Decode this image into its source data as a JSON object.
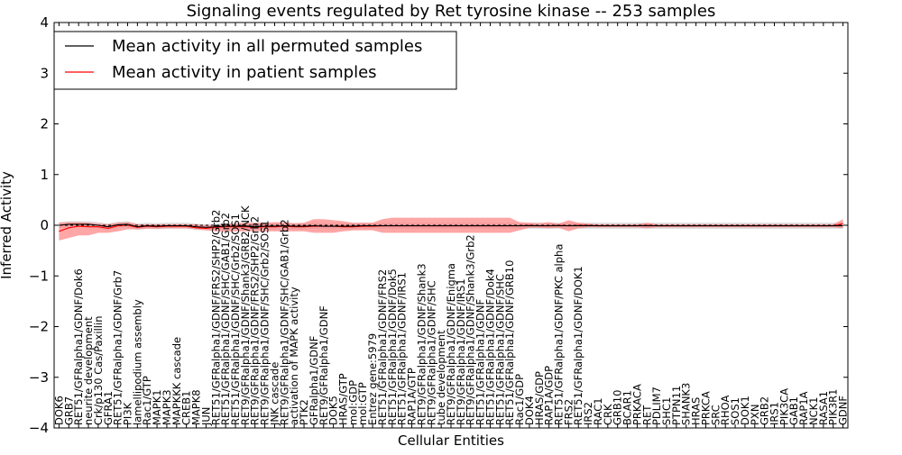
{
  "chart_data": {
    "type": "line",
    "title": "Signaling events regulated by Ret tyrosine kinase -- 253 samples",
    "xlabel": "Cellular Entities",
    "ylabel": "Inferred Activity",
    "ylim": [
      -4,
      4
    ],
    "yticks": [
      4,
      3,
      2,
      1,
      0,
      -1,
      -2,
      -3,
      -4
    ],
    "legend_position": "top-left",
    "colors": {
      "permuted": "#000000",
      "patient": "#ff0000",
      "patient_band": "#ff8080",
      "permuted_band": "#bfbfbf"
    },
    "categories": [
      "DOK6",
      "GRB7",
      "RET51/GFRalpha1/GDNF/Dok6",
      "neurite development",
      "Crk/p130 Cas/Paxillin",
      "GFRA1",
      "RET51/GFRalpha1/GDNF/Grb7",
      "PI3K",
      "lamellipodium assembly",
      "Rac1/GTP",
      "MAPK1",
      "MAPK3",
      "MAPKKK cascade",
      "CREB1",
      "MAPK8",
      "JUN",
      "RET51/GFRalpha1/GDNF/FRS2/SHP2/Grb2",
      "RET51/GFRalpha1/GDNF/SHC/GAB1/Grb2",
      "RET51/GFRalpha1/GDNF/SHC/Grb2/SOS1",
      "RET9/GFRalpha1/GDNF/Shank3/GRB2/NCK",
      "RET9/GFRalpha1/GDNF/FRS2/SHP2/Grb2",
      "RET9/GFRalpha1/GDNF/SHC/Grb2/SOS1",
      "JNK cascade",
      "RET9/GFRalpha1/GDNF/SHC/GAB1/Grb2",
      "activation of MAPK activity",
      "PTK2",
      "GFRalpha1/GDNF",
      "RET9/GFRalpha1/GDNF",
      "DOK5",
      "HRAS/GTP",
      "mol:GDP",
      "mol:GTP",
      "Entrez gene:5979",
      "RET51/GFRalpha1/GDNF/FRS2",
      "RET51/GFRalpha1/GDNF/Dok5",
      "RET51/GFRalpha1/GDNF/IRS1",
      "RAP1A/GTP",
      "RET9/GFRalpha1/GDNF/Shank3",
      "RET9/GFRalpha1/GDNF/SHC",
      "tube development",
      "RET9/GFRalpha1/GDNF/Enigma",
      "RET9/GFRalpha1/GDNF/IRS1",
      "RET9/GFRalpha1/GDNF/Shank3/Grb2",
      "RET51/GFRalpha1/GDNF",
      "RET51/GFRalpha1/GDNF/Dok4",
      "RET51/GFRalpha1/GDNF/SHC",
      "RET51/GFRalpha1/GDNF/GRB10",
      "Rac1/GDP",
      "DOK4",
      "HRAS/GDP",
      "RAP1A/GDP",
      "RET51/GFRalpha1/GDNF/PKC alpha",
      "FRS2",
      "RET51/GFRalpha1/GDNF/DOK1",
      "IRS2",
      "RAC1",
      "CRK",
      "GRB10",
      "BCAR1",
      "PRKACA",
      "RET",
      "PDLIM7",
      "SHC1",
      "PTPN11",
      "SHANK3",
      "HRAS",
      "PRKCA",
      "SRC",
      "RHOA",
      "SOS1",
      "DOK1",
      "PXN",
      "GRB2",
      "IRS1",
      "PIK3CA",
      "GAB1",
      "RAP1A",
      "NCK1",
      "RASA1",
      "PIK3R1",
      "GDNF"
    ],
    "series": [
      {
        "name": "Mean activity in all permuted samples",
        "role": "permuted",
        "values": [
          0.0,
          0.02,
          0.02,
          0.02,
          0.0,
          -0.03,
          0.01,
          0.02,
          -0.03,
          -0.01,
          -0.02,
          -0.01,
          -0.01,
          -0.01,
          -0.03,
          -0.04,
          -0.03,
          -0.02,
          -0.02,
          -0.02,
          -0.03,
          -0.02,
          -0.02,
          -0.01,
          -0.02,
          -0.02,
          -0.01,
          -0.02,
          -0.02,
          -0.02,
          -0.02,
          -0.01,
          -0.01,
          -0.01,
          -0.01,
          -0.01,
          -0.01,
          -0.01,
          -0.01,
          -0.01,
          -0.01,
          -0.01,
          -0.01,
          -0.01,
          -0.01,
          -0.01,
          -0.01,
          -0.01,
          -0.01,
          -0.01,
          -0.01,
          -0.01,
          -0.01,
          -0.01,
          -0.01,
          -0.01,
          -0.01,
          -0.01,
          -0.01,
          -0.01,
          -0.01,
          -0.01,
          -0.01,
          -0.01,
          -0.01,
          -0.01,
          -0.01,
          -0.01,
          -0.01,
          -0.01,
          -0.01,
          -0.01,
          -0.01,
          -0.01,
          -0.01,
          -0.01,
          -0.01,
          -0.01,
          -0.01,
          -0.01,
          -0.01
        ]
      },
      {
        "name": "Mean activity in patient samples",
        "role": "patient",
        "values": [
          -0.12,
          -0.05,
          -0.02,
          -0.03,
          -0.03,
          -0.06,
          -0.01,
          0.0,
          -0.04,
          -0.02,
          -0.03,
          -0.02,
          -0.02,
          -0.02,
          -0.05,
          -0.06,
          -0.04,
          -0.03,
          -0.03,
          -0.03,
          -0.04,
          -0.03,
          -0.03,
          -0.02,
          -0.03,
          -0.03,
          -0.02,
          -0.02,
          -0.02,
          -0.03,
          -0.03,
          -0.02,
          -0.02,
          -0.01,
          -0.01,
          -0.01,
          -0.01,
          -0.01,
          -0.01,
          -0.01,
          -0.01,
          -0.01,
          -0.01,
          -0.01,
          -0.01,
          -0.01,
          -0.01,
          -0.01,
          0.0,
          -0.01,
          -0.01,
          0.0,
          -0.01,
          0.0,
          0.0,
          -0.01,
          -0.01,
          -0.01,
          -0.01,
          -0.01,
          0.0,
          -0.01,
          -0.01,
          -0.01,
          -0.01,
          -0.01,
          -0.01,
          -0.01,
          -0.01,
          -0.01,
          -0.01,
          -0.01,
          -0.01,
          -0.01,
          -0.01,
          -0.01,
          -0.01,
          -0.01,
          -0.01,
          -0.01,
          0.03
        ],
        "band_upper": [
          0.05,
          0.06,
          0.06,
          0.05,
          0.03,
          0.02,
          0.05,
          0.06,
          0.02,
          0.02,
          0.02,
          0.02,
          0.02,
          0.02,
          0.02,
          0.0,
          0.0,
          0.02,
          0.04,
          0.05,
          0.05,
          0.05,
          0.06,
          0.06,
          0.04,
          0.05,
          0.12,
          0.12,
          0.1,
          0.08,
          0.05,
          0.05,
          0.05,
          0.12,
          0.15,
          0.15,
          0.15,
          0.15,
          0.15,
          0.15,
          0.15,
          0.15,
          0.15,
          0.15,
          0.15,
          0.15,
          0.15,
          0.06,
          0.05,
          0.04,
          0.06,
          0.03,
          0.1,
          0.05,
          0.03,
          0.02,
          0.02,
          0.02,
          0.02,
          0.02,
          0.05,
          0.02,
          0.02,
          0.02,
          0.02,
          0.02,
          0.02,
          0.02,
          0.02,
          0.02,
          0.02,
          0.02,
          0.02,
          0.02,
          0.02,
          0.02,
          0.02,
          0.02,
          0.02,
          0.02,
          0.12
        ],
        "band_lower": [
          -0.3,
          -0.25,
          -0.2,
          -0.2,
          -0.15,
          -0.15,
          -0.12,
          -0.08,
          -0.08,
          -0.07,
          -0.07,
          -0.06,
          -0.06,
          -0.06,
          -0.08,
          -0.1,
          -0.12,
          -0.12,
          -0.12,
          -0.12,
          -0.12,
          -0.12,
          -0.12,
          -0.12,
          -0.12,
          -0.12,
          -0.15,
          -0.15,
          -0.15,
          -0.12,
          -0.1,
          -0.1,
          -0.1,
          -0.15,
          -0.15,
          -0.15,
          -0.15,
          -0.15,
          -0.15,
          -0.15,
          -0.15,
          -0.15,
          -0.15,
          -0.15,
          -0.15,
          -0.15,
          -0.15,
          -0.1,
          -0.05,
          -0.05,
          -0.06,
          -0.05,
          -0.12,
          -0.06,
          -0.04,
          -0.04,
          -0.04,
          -0.04,
          -0.04,
          -0.04,
          -0.06,
          -0.04,
          -0.04,
          -0.04,
          -0.04,
          -0.04,
          -0.04,
          -0.04,
          -0.04,
          -0.04,
          -0.04,
          -0.04,
          -0.04,
          -0.04,
          -0.04,
          -0.04,
          -0.04,
          -0.04,
          -0.04,
          -0.04,
          -0.06
        ]
      }
    ]
  }
}
